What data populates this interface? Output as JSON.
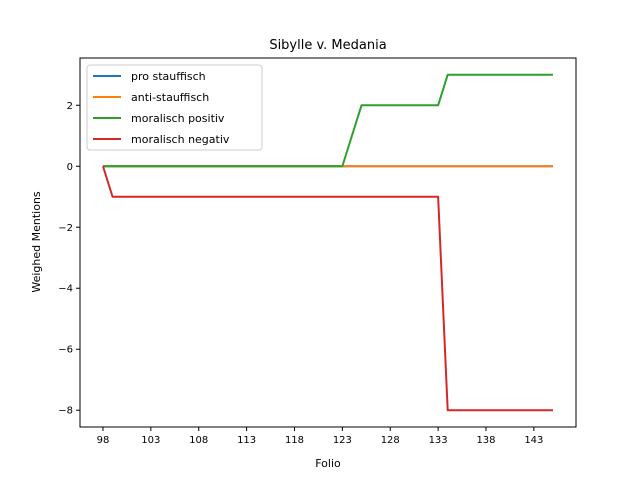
{
  "chart_data": {
    "type": "line",
    "title": "Sibylle v. Medania",
    "xlabel": "Folio",
    "ylabel": "Weighed Mentions",
    "xlim": [
      95.6,
      147.4
    ],
    "ylim": [
      -8.55,
      3.55
    ],
    "xticks": [
      98,
      103,
      108,
      113,
      118,
      123,
      128,
      133,
      138,
      143
    ],
    "yticks": [
      -8,
      -6,
      -4,
      -2,
      0,
      2
    ],
    "ytick_labels": [
      "−8",
      "−6",
      "−4",
      "−2",
      "0",
      "2"
    ],
    "grid": false,
    "legend_position": "top-left",
    "series": [
      {
        "name": "pro stauffisch",
        "color": "#1f77b4",
        "x": [
          98,
          99,
          123,
          125,
          133,
          134,
          145
        ],
        "y": [
          0,
          0,
          0,
          0,
          0,
          0,
          0
        ]
      },
      {
        "name": "anti-stauffisch",
        "color": "#ff7f0e",
        "x": [
          98,
          99,
          123,
          125,
          133,
          134,
          145
        ],
        "y": [
          0,
          0,
          0,
          0,
          0,
          0,
          0
        ]
      },
      {
        "name": "moralisch positiv",
        "color": "#2ca02c",
        "x": [
          98,
          99,
          123,
          125,
          133,
          134,
          145
        ],
        "y": [
          0,
          0,
          0,
          2,
          2,
          3,
          3
        ]
      },
      {
        "name": "moralisch negativ",
        "color": "#d62728",
        "x": [
          98,
          99,
          123,
          125,
          133,
          134,
          145
        ],
        "y": [
          0,
          -1,
          -1,
          -1,
          -1,
          -8,
          -8
        ]
      }
    ]
  }
}
